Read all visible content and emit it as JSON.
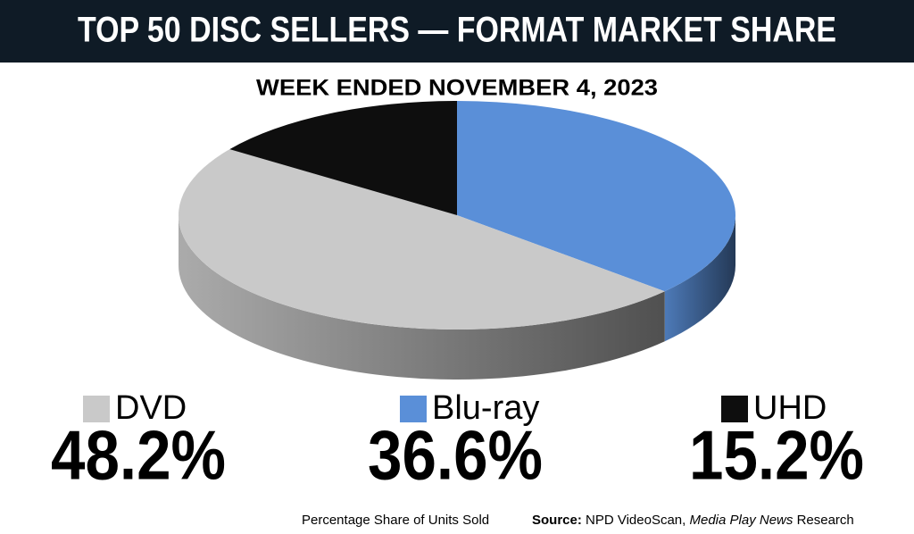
{
  "chart_data": {
    "type": "pie",
    "title": "TOP 50 DISC SELLERS — FORMAT MARKET SHARE",
    "subtitle": "WEEK ENDED NOVEMBER 4, 2023",
    "categories": [
      "DVD",
      "Blu-ray",
      "UHD"
    ],
    "values": [
      48.2,
      36.6,
      15.2
    ],
    "value_labels": [
      "48.2%",
      "36.6%",
      "15.2%"
    ],
    "colors": [
      "#c9c9c9",
      "#5a8fd8",
      "#0e0e0e"
    ],
    "note": "Percentage Share of Units Sold",
    "source_label": "Source:",
    "source": "NPD VideoScan,",
    "source_italic": "Media Play News",
    "source_end": "Research"
  }
}
